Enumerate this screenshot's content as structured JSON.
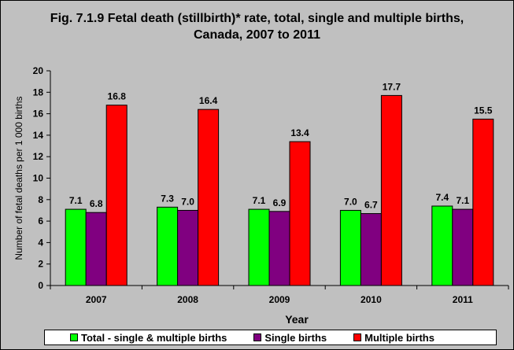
{
  "chart_data": {
    "type": "bar",
    "title_lines": [
      "Fig. 7.1.9 Fetal death (stillbirth)* rate, total, single and multiple births,",
      "Canada, 2007 to 2011"
    ],
    "xlabel": "Year",
    "ylabel": "Number of fetal deaths per 1 000 births",
    "categories": [
      "2007",
      "2008",
      "2009",
      "2010",
      "2011"
    ],
    "ylim": [
      0,
      20
    ],
    "yticks": [
      "0",
      "2",
      "4",
      "6",
      "8",
      "10",
      "12",
      "14",
      "16",
      "18",
      "20"
    ],
    "grid": false,
    "legend_position": "bottom",
    "series": [
      {
        "name": "Total - single & multiple births",
        "color": "#00ff00",
        "values": [
          7.1,
          7.3,
          7.1,
          7.0,
          7.4
        ],
        "labels": [
          "7.1",
          "7.3",
          "7.1",
          "7.0",
          "7.4"
        ]
      },
      {
        "name": "Single births",
        "color": "#800080",
        "values": [
          6.8,
          7.0,
          6.9,
          6.7,
          7.1
        ],
        "labels": [
          "6.8",
          "7.0",
          "6.9",
          "6.7",
          "7.1"
        ]
      },
      {
        "name": "Multiple births",
        "color": "#ff0000",
        "values": [
          16.8,
          16.4,
          13.4,
          17.7,
          15.5
        ],
        "labels": [
          "16.8",
          "16.4",
          "13.4",
          "17.7",
          "15.5"
        ]
      }
    ],
    "plot_background": "#c0c0c0"
  }
}
